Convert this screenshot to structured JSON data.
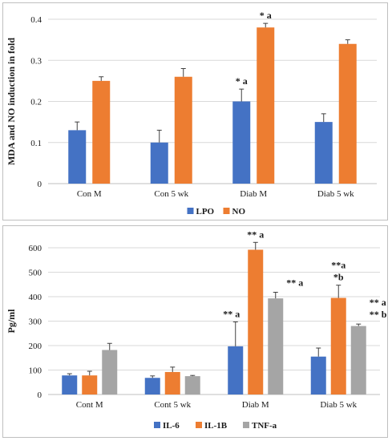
{
  "chart_data": [
    {
      "type": "bar",
      "title": "",
      "xlabel": "",
      "ylabel": "MDA and NO induction in fold",
      "ylim": [
        0,
        0.4
      ],
      "yticks": [
        "0",
        "0.1",
        "0.2",
        "0.3",
        "0.4"
      ],
      "grid": true,
      "legend_position": "bottom",
      "categories": [
        "Con M",
        "Con 5 wk",
        "Diab M",
        "Diab 5 wk"
      ],
      "series": [
        {
          "name": "LPO",
          "color": "#4472C4",
          "values": [
            0.13,
            0.1,
            0.2,
            0.15
          ],
          "errors": [
            0.02,
            0.03,
            0.03,
            0.02
          ],
          "annotations": [
            "",
            "",
            "* a",
            ""
          ]
        },
        {
          "name": "NO",
          "color": "#ED7D31",
          "values": [
            0.25,
            0.26,
            0.38,
            0.34
          ],
          "errors": [
            0.01,
            0.02,
            0.01,
            0.01
          ],
          "annotations": [
            "",
            "",
            "* a",
            ""
          ]
        }
      ]
    },
    {
      "type": "bar",
      "title": "",
      "xlabel": "",
      "ylabel": "Pg/ml",
      "ylim": [
        0,
        600
      ],
      "yticks": [
        "0",
        "100",
        "200",
        "300",
        "400",
        "500",
        "600"
      ],
      "grid": true,
      "legend_position": "bottom",
      "categories": [
        "Cont M",
        "Cont 5 wk",
        "Diab M",
        "Diab 5 wk"
      ],
      "series": [
        {
          "name": "IL-6",
          "color": "#4472C4",
          "values": [
            78,
            68,
            197,
            155
          ],
          "errors": [
            7,
            8,
            100,
            35
          ],
          "annotations": [
            "",
            "",
            "** a",
            ""
          ]
        },
        {
          "name": "IL-1B",
          "color": "#ED7D31",
          "values": [
            78,
            92,
            592,
            395
          ],
          "errors": [
            17,
            20,
            30,
            52
          ],
          "annotations": [
            "",
            "",
            "** a",
            "**a|*b"
          ]
        },
        {
          "name": "TNF-a",
          "color": "#A5A5A5",
          "values": [
            182,
            75,
            393,
            280
          ],
          "errors": [
            27,
            3,
            25,
            8
          ],
          "annotations": [
            "",
            "",
            "** a",
            "** a|** b"
          ]
        }
      ]
    }
  ]
}
